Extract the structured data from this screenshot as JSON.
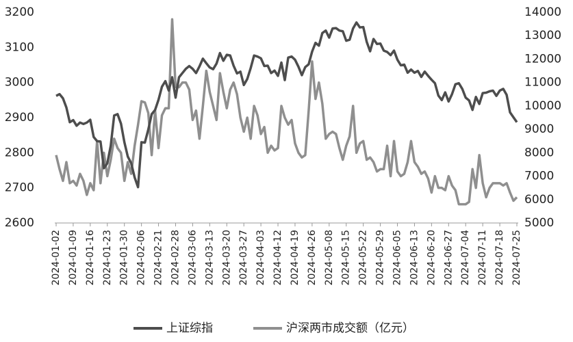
{
  "chart_data": {
    "type": "line",
    "categories": [
      "2024-01-02",
      null,
      null,
      null,
      null,
      "2024-01-09",
      null,
      null,
      null,
      null,
      "2024-01-16",
      null,
      null,
      null,
      null,
      "2024-01-23",
      null,
      null,
      null,
      null,
      "2024-01-30",
      null,
      null,
      null,
      null,
      "2024-02-06",
      null,
      null,
      null,
      null,
      "2024-02-21",
      null,
      null,
      null,
      null,
      "2024-02-28",
      null,
      null,
      null,
      null,
      "2024-03-06",
      null,
      null,
      null,
      null,
      "2024-03-13",
      null,
      null,
      null,
      null,
      "2024-03-20",
      null,
      null,
      null,
      null,
      "2024-03-27",
      null,
      null,
      null,
      null,
      "2024-04-03",
      null,
      null,
      null,
      null,
      "2024-04-12",
      null,
      null,
      null,
      null,
      "2024-04-19",
      null,
      null,
      null,
      null,
      "2024-04-26",
      null,
      null,
      null,
      null,
      "2024-05-08",
      null,
      null,
      null,
      null,
      "2024-05-15",
      null,
      null,
      null,
      null,
      "2024-05-22",
      null,
      null,
      null,
      null,
      "2024-05-29",
      null,
      null,
      null,
      null,
      "2024-06-05",
      null,
      null,
      null,
      null,
      "2024-06-13",
      null,
      null,
      null,
      null,
      "2024-06-20",
      null,
      null,
      null,
      null,
      "2024-06-27",
      null,
      null,
      null,
      null,
      "2024-07-04",
      null,
      null,
      null,
      null,
      "2024-07-11",
      null,
      null,
      null,
      null,
      "2024-07-18",
      null,
      null,
      null,
      null,
      "2024-07-25"
    ],
    "series": [
      {
        "name": "上证综指",
        "color": "#4d4d4d",
        "axis": "y",
        "values": [
          2962,
          2967,
          2955,
          2929,
          2887,
          2893,
          2877,
          2886,
          2882,
          2886,
          2894,
          2845,
          2833,
          2832,
          2756,
          2770,
          2820,
          2906,
          2910,
          2883,
          2830,
          2789,
          2770,
          2730,
          2702,
          2830,
          2829,
          2866,
          2910,
          2922,
          2951,
          2988,
          3004,
          2977,
          3015,
          2957,
          3015,
          3027,
          3039,
          3047,
          3039,
          3027,
          3046,
          3068,
          3055,
          3043,
          3038,
          3054,
          3084,
          3062,
          3079,
          3077,
          3048,
          3026,
          3031,
          2993,
          3010,
          3041,
          3077,
          3074,
          3069,
          3047,
          3048,
          3027,
          3034,
          3019,
          3057,
          3007,
          3071,
          3074,
          3065,
          3045,
          3021,
          3044,
          3052,
          3088,
          3113,
          3105,
          3141,
          3148,
          3128,
          3154,
          3155,
          3148,
          3146,
          3119,
          3122,
          3154,
          3171,
          3157,
          3158,
          3116,
          3089,
          3124,
          3110,
          3111,
          3091,
          3087,
          3078,
          3091,
          3065,
          3049,
          3051,
          3028,
          3037,
          3028,
          3033,
          3016,
          3031,
          3019,
          3008,
          2998,
          2963,
          2950,
          2972,
          2946,
          2967,
          2995,
          2998,
          2982,
          2957,
          2949,
          2922,
          2959,
          2939,
          2970,
          2971,
          2975,
          2977,
          2962,
          2977,
          2982,
          2965,
          2915,
          2901,
          2887
        ]
      },
      {
        "name": "沪深两市成交额（亿元）",
        "color": "#8f8f8f",
        "axis": "y2",
        "values": [
          7900,
          7300,
          6800,
          7600,
          6700,
          6800,
          6600,
          7100,
          6800,
          6200,
          6700,
          6400,
          8500,
          6700,
          8000,
          7000,
          7700,
          8600,
          8200,
          8000,
          6800,
          7600,
          7100,
          8300,
          9200,
          10200,
          10150,
          9700,
          7900,
          9800,
          8200,
          9600,
          9900,
          9900,
          13700,
          10800,
          10800,
          11000,
          11000,
          10700,
          9400,
          9800,
          8600,
          10000,
          11500,
          10600,
          10000,
          9400,
          11400,
          10600,
          9900,
          10700,
          11000,
          10500,
          9500,
          8900,
          9500,
          8600,
          10000,
          9600,
          8800,
          9100,
          8000,
          8300,
          8100,
          8200,
          10000,
          9500,
          9200,
          9400,
          8400,
          8000,
          7800,
          7900,
          9800,
          11900,
          10300,
          11000,
          10100,
          8600,
          8800,
          8900,
          8800,
          8200,
          7700,
          8300,
          8700,
          10000,
          8000,
          8400,
          8500,
          7700,
          7800,
          7600,
          7200,
          7300,
          7300,
          8300,
          7000,
          8500,
          7200,
          7000,
          7100,
          7600,
          8500,
          7600,
          7400,
          7100,
          7200,
          6900,
          6300,
          7000,
          6500,
          6500,
          6400,
          7000,
          6600,
          6400,
          5800,
          5800,
          5800,
          5900,
          7300,
          6500,
          7900,
          6700,
          6100,
          6500,
          6700,
          6700,
          6700,
          6600,
          6700,
          6300,
          5950,
          6100
        ]
      }
    ],
    "ylim": [
      2600,
      3200
    ],
    "yticks": [
      2600,
      2700,
      2800,
      2900,
      3000,
      3100,
      3200
    ],
    "y2lim": [
      5000,
      14000
    ],
    "y2ticks": [
      5000,
      6000,
      7000,
      8000,
      9000,
      10000,
      11000,
      12000,
      13000,
      14000
    ],
    "grid": false,
    "legend": "bottom"
  }
}
